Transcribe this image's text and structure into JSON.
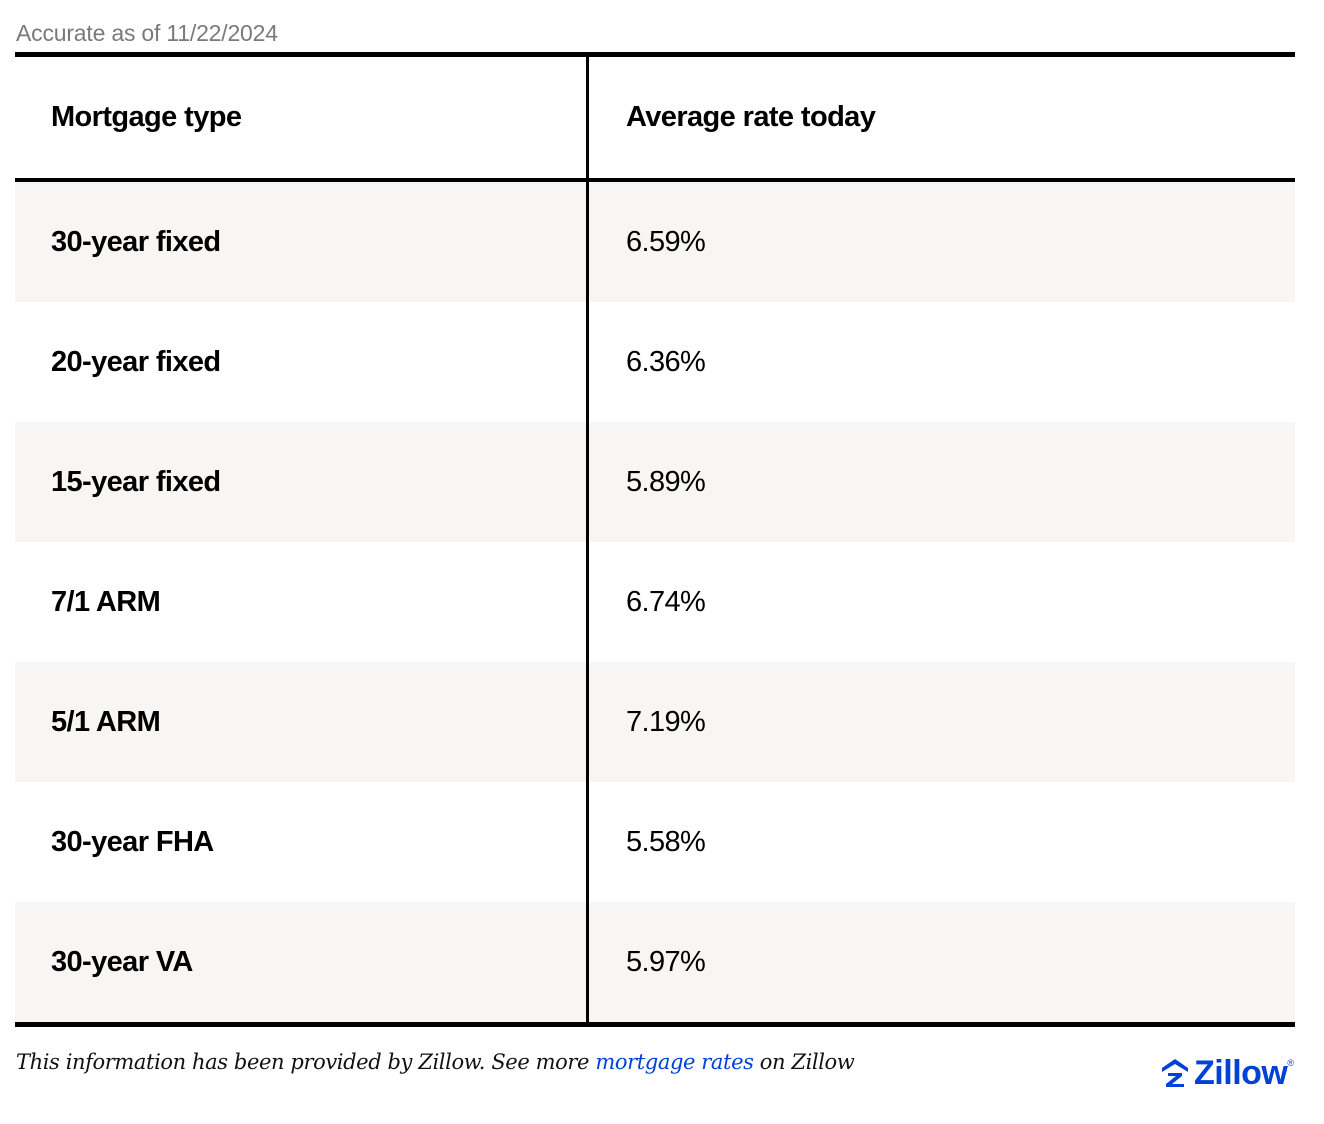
{
  "accurate_note": "Accurate as of 11/22/2024",
  "table": {
    "headers": {
      "type": "Mortgage type",
      "rate": "Average rate today"
    },
    "rows": [
      {
        "type": "30-year fixed",
        "rate": "6.59%"
      },
      {
        "type": "20-year fixed",
        "rate": "6.36%"
      },
      {
        "type": "15-year fixed",
        "rate": "5.89%"
      },
      {
        "type": "7/1 ARM",
        "rate": "6.74%"
      },
      {
        "type": "5/1 ARM",
        "rate": "7.19%"
      },
      {
        "type": "30-year FHA",
        "rate": "5.58%"
      },
      {
        "type": "30-year VA",
        "rate": "5.97%"
      }
    ]
  },
  "footer": {
    "text_before": "This information has been provided by Zillow. See more ",
    "link_text": "mortgage rates",
    "text_after": " on Zillow"
  },
  "logo": {
    "word": "Zillow",
    "mark": "®",
    "icon": "zillow-house-icon"
  },
  "colors": {
    "accent": "#0041d9",
    "row_shade": "#f7f6f4",
    "muted_text": "#7a7a7a"
  }
}
